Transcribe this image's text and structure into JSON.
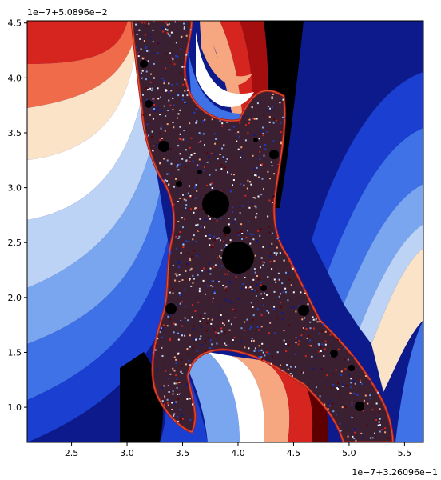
{
  "chart_data": {
    "type": "heatmap",
    "title": "",
    "xlabel": "",
    "ylabel": "",
    "x_offset_label": "1e−7+3.26096e−1",
    "y_offset_label": "1e−7+5.0896e−2",
    "xlim": [
      2.1,
      5.67
    ],
    "ylim": [
      0.68,
      4.52
    ],
    "x_ticks": [
      {
        "value": 2.5,
        "label": "2.5"
      },
      {
        "value": 3.0,
        "label": "3.0"
      },
      {
        "value": 3.5,
        "label": "3.5"
      },
      {
        "value": 4.0,
        "label": "4.0"
      },
      {
        "value": 4.5,
        "label": "4.5"
      },
      {
        "value": 5.0,
        "label": "5.0"
      },
      {
        "value": 5.5,
        "label": "5.5"
      }
    ],
    "y_ticks": [
      {
        "value": 1.0,
        "label": "1.0"
      },
      {
        "value": 1.5,
        "label": "1.5"
      },
      {
        "value": 2.0,
        "label": "2.0"
      },
      {
        "value": 2.5,
        "label": "2.5"
      },
      {
        "value": 3.0,
        "label": "3.0"
      },
      {
        "value": 3.5,
        "label": "3.5"
      },
      {
        "value": 4.0,
        "label": "4.0"
      },
      {
        "value": 4.5,
        "label": "4.5"
      }
    ],
    "colormap": [
      "#00004c",
      "#0c1a8c",
      "#1a3fd1",
      "#3f72e6",
      "#7aa6ef",
      "#bcd3f5",
      "#ffffff",
      "#fbe3c7",
      "#f7a77f",
      "#ef6b4a",
      "#d6251f",
      "#a50e0e",
      "#5e0000",
      "#000000"
    ],
    "set_color": "#000000",
    "axes_color": "#000000"
  }
}
